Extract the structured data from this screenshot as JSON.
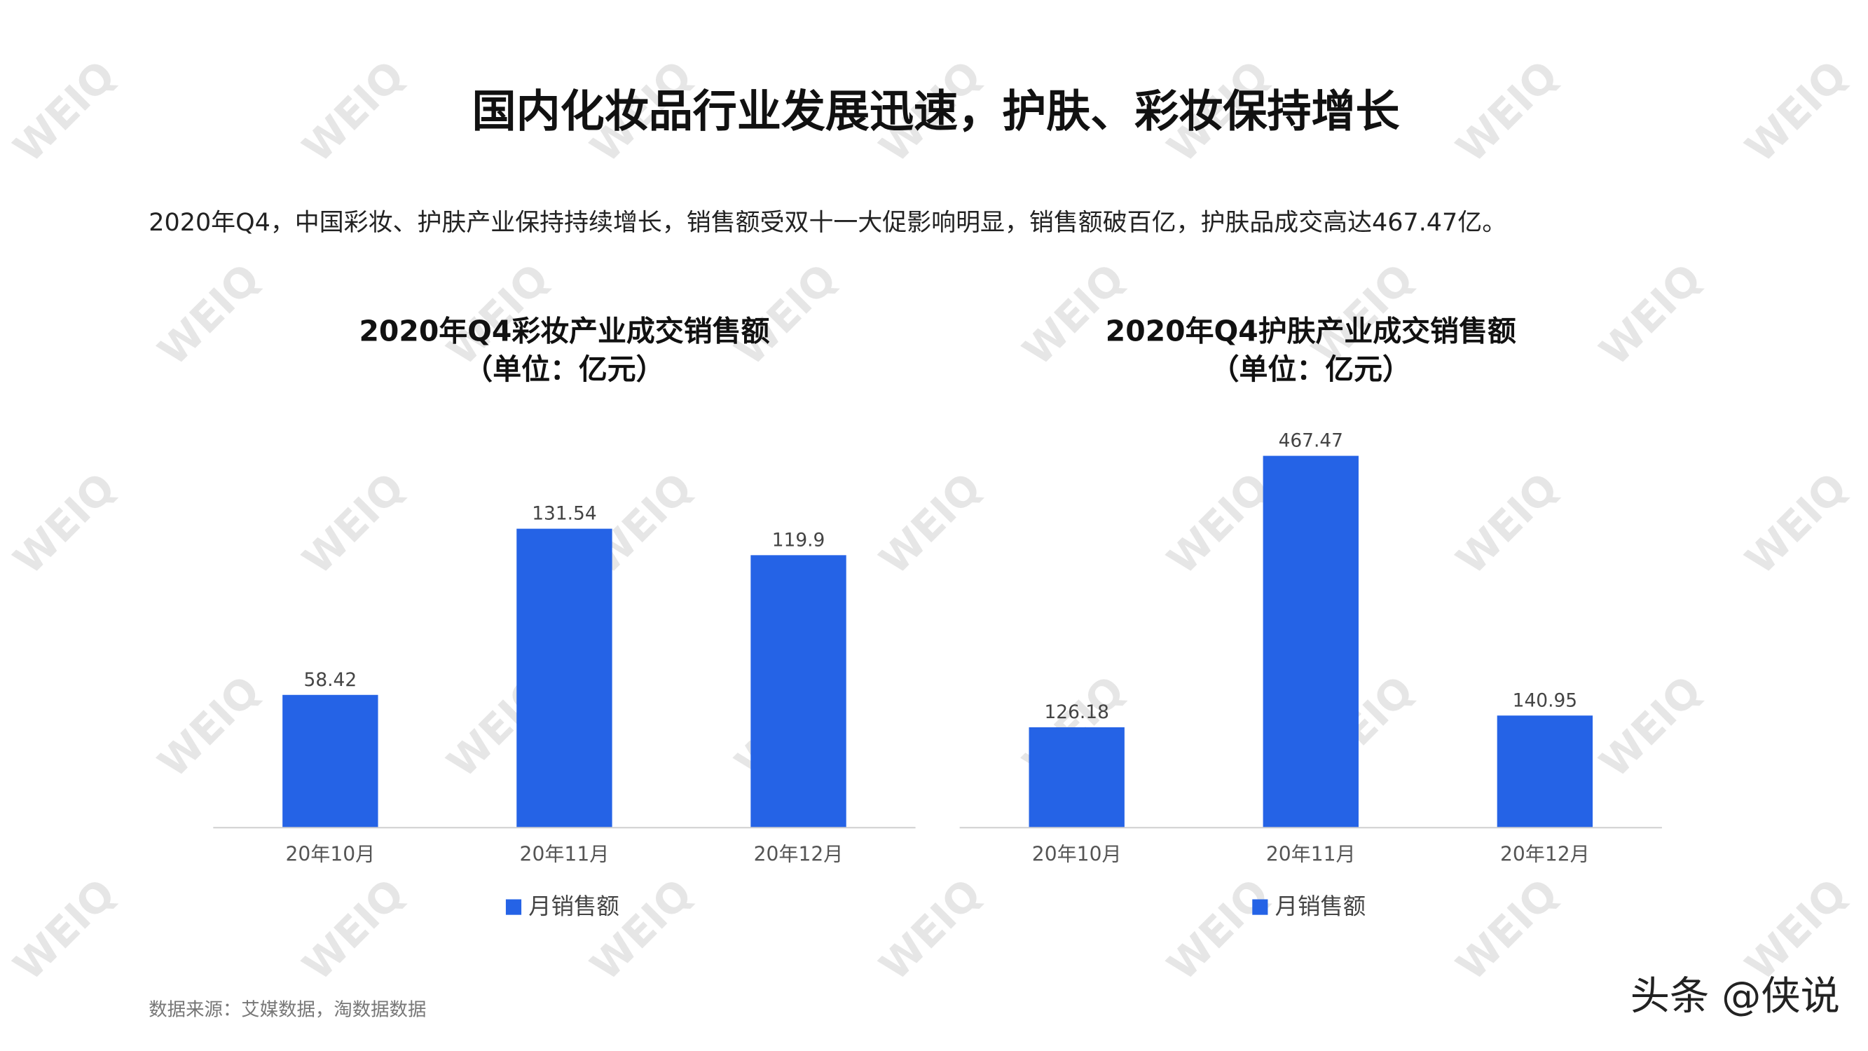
{
  "title": "国内化妆品行业发展迅速，护肤、彩妆保持增长",
  "subtitle": "2020年Q4，中国彩妆、护肤产业保持持续增长，销售额受双十一大促影响明显，销售额破百亿，护肤品成交高达467.47亿。",
  "source": "数据来源：艾媒数据，淘数据数据",
  "credit": "头条 @侠说",
  "watermark": "WEIQ",
  "chart_data": [
    {
      "type": "bar",
      "title": "2020年Q4彩妆产业成交销售额",
      "subtitle": "（单位：亿元）",
      "categories": [
        "20年10月",
        "20年11月",
        "20年12月"
      ],
      "series": [
        {
          "name": "月销售额",
          "color": "#2563e6",
          "values": [
            58.42,
            131.54,
            119.9
          ]
        }
      ],
      "ylim": [
        0,
        175
      ],
      "grid": false,
      "legend": "bottom"
    },
    {
      "type": "bar",
      "title": "2020年Q4护肤产业成交销售额",
      "subtitle": "（单位：亿元）",
      "categories": [
        "20年10月",
        "20年11月",
        "20年12月"
      ],
      "series": [
        {
          "name": "月销售额",
          "color": "#2563e6",
          "values": [
            126.18,
            467.47,
            140.95
          ]
        }
      ],
      "ylim": [
        0,
        500
      ],
      "grid": false,
      "legend": "bottom"
    }
  ]
}
